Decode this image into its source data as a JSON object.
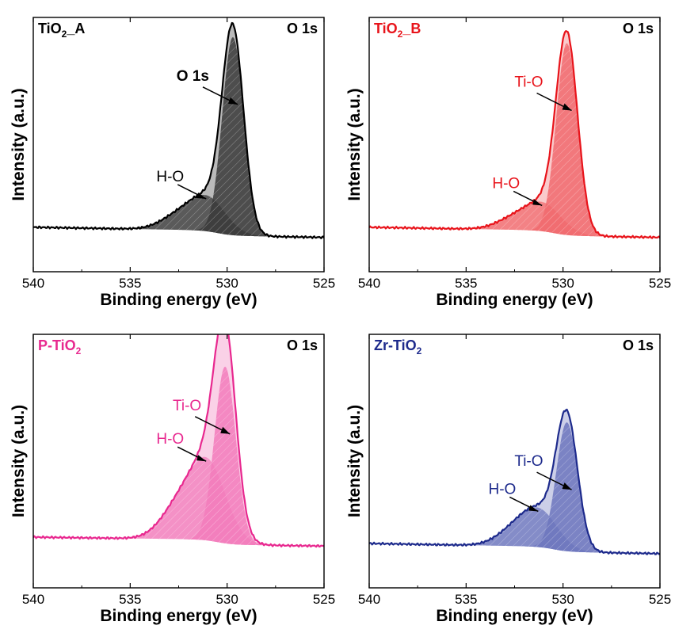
{
  "chart_data": [
    {
      "type": "line",
      "sample": {
        "prefix": "TiO",
        "sub": "2",
        "suffix": "_A"
      },
      "region_label": "O 1s",
      "title_color": "#000000",
      "line_color": "#000000",
      "fill_color": "#3a3a3a",
      "ylabel": "Intensity (a.u.)",
      "xlabel": "Binding energy (eV)",
      "xlim": [
        540,
        525
      ],
      "xticks": [
        "540",
        "535",
        "530",
        "525"
      ],
      "y_axis_ticks_shown": false,
      "peaks": [
        {
          "label": "O 1s",
          "label_bold": true,
          "center_eV": 529.7,
          "relative_height": 0.95
        },
        {
          "label": "H-O",
          "label_bold": false,
          "center_eV": 531.0,
          "relative_height": 0.16
        }
      ]
    },
    {
      "type": "line",
      "sample": {
        "prefix": "TiO",
        "sub": "2",
        "suffix": "_B"
      },
      "region_label": "O 1s",
      "title_color": "#e8141b",
      "line_color": "#e8141b",
      "fill_color": "#f06a6d",
      "ylabel": "Intensity (a.u.)",
      "xlabel": "Binding energy (eV)",
      "xlim": [
        540,
        525
      ],
      "xticks": [
        "540",
        "535",
        "530",
        "525"
      ],
      "y_axis_ticks_shown": false,
      "peaks": [
        {
          "label": "Ti-O",
          "label_bold": false,
          "center_eV": 529.8,
          "relative_height": 0.92
        },
        {
          "label": "H-O",
          "label_bold": false,
          "center_eV": 531.0,
          "relative_height": 0.13
        }
      ]
    },
    {
      "type": "line",
      "sample": {
        "prefix": "P-TiO",
        "sub": "2",
        "suffix": ""
      },
      "region_label": "O 1s",
      "title_color": "#e8288f",
      "line_color": "#e8288f",
      "fill_color": "#f27bbb",
      "ylabel": "Intensity (a.u.)",
      "xlabel": "Binding energy (eV)",
      "xlim": [
        540,
        525
      ],
      "xticks": [
        "540",
        "535",
        "530",
        "525"
      ],
      "y_axis_ticks_shown": false,
      "peaks": [
        {
          "label": "Ti-O",
          "label_bold": false,
          "center_eV": 530.1,
          "relative_height": 0.85
        },
        {
          "label": "H-O",
          "label_bold": false,
          "center_eV": 531.0,
          "relative_height": 0.37
        }
      ]
    },
    {
      "type": "line",
      "sample": {
        "prefix": "Zr-TiO",
        "sub": "2",
        "suffix": ""
      },
      "region_label": "O 1s",
      "title_color": "#1d2a8c",
      "line_color": "#1d2a8c",
      "fill_color": "#6c75bd",
      "ylabel": "Intensity (a.u.)",
      "xlabel": "Binding energy (eV)",
      "xlim": [
        540,
        525
      ],
      "xticks": [
        "540",
        "535",
        "530",
        "525"
      ],
      "y_axis_ticks_shown": false,
      "peaks": [
        {
          "label": "Ti-O",
          "label_bold": false,
          "center_eV": 529.8,
          "relative_height": 0.62
        },
        {
          "label": "H-O",
          "label_bold": false,
          "center_eV": 531.2,
          "relative_height": 0.17
        }
      ]
    }
  ]
}
